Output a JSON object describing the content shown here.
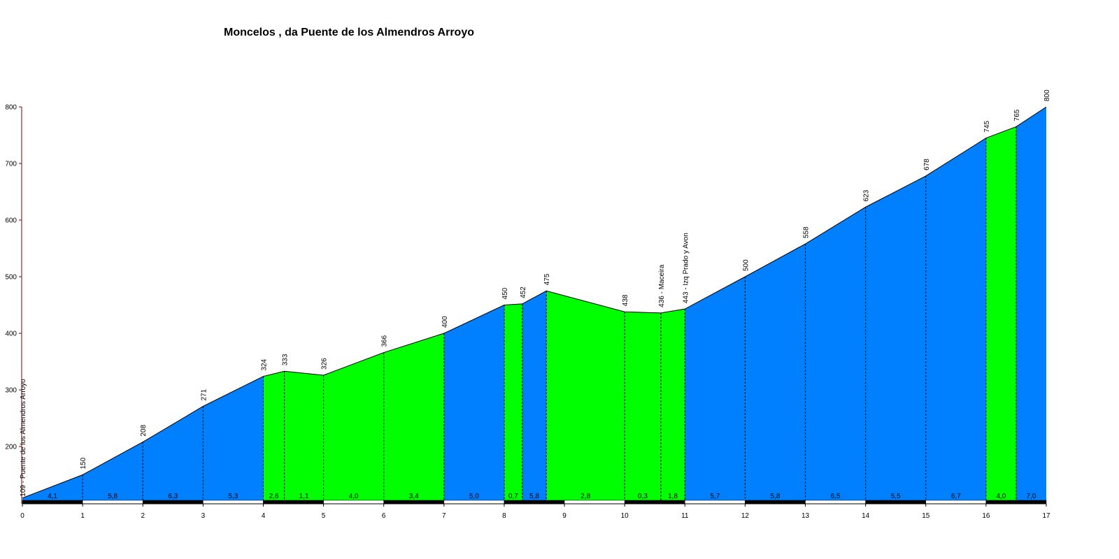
{
  "chart_data": {
    "type": "area",
    "title": "Moncelos , da Puente de los Almendros Arroyo",
    "xlabel": "",
    "ylabel": "",
    "xlim": [
      0,
      17
    ],
    "ylim": [
      100,
      800
    ],
    "x_ticks": [
      "0",
      "1",
      "2",
      "3",
      "4",
      "5",
      "6",
      "7",
      "8",
      "9",
      "10",
      "11",
      "12",
      "13",
      "14",
      "15",
      "16",
      "17"
    ],
    "y_ticks": [
      "200",
      "300",
      "400",
      "500",
      "600",
      "700",
      "800"
    ],
    "grid": false,
    "colors": {
      "climb": "#0080ff",
      "easy": "#00ff00",
      "axis": "#800000",
      "bar_dark": "#000000",
      "bar_light": "#ffffff"
    },
    "points": [
      {
        "x": 0,
        "y": 109,
        "label": "109 - Puente de los Almendros Arroyo"
      },
      {
        "x": 1,
        "y": 150,
        "label": "150"
      },
      {
        "x": 2,
        "y": 208,
        "label": "208"
      },
      {
        "x": 3,
        "y": 271,
        "label": "271"
      },
      {
        "x": 4,
        "y": 324,
        "label": "324"
      },
      {
        "x": 4.35,
        "y": 333,
        "label": "333"
      },
      {
        "x": 5,
        "y": 326,
        "label": "326"
      },
      {
        "x": 6,
        "y": 366,
        "label": "366"
      },
      {
        "x": 7,
        "y": 400,
        "label": "400"
      },
      {
        "x": 8,
        "y": 450,
        "label": "450"
      },
      {
        "x": 8.3,
        "y": 452,
        "label": "452"
      },
      {
        "x": 8.7,
        "y": 475,
        "label": "475"
      },
      {
        "x": 10,
        "y": 438,
        "label": "438"
      },
      {
        "x": 10.6,
        "y": 436,
        "label": "436 - Maceira"
      },
      {
        "x": 11,
        "y": 443,
        "label": "443 - Izq Prado y Avon"
      },
      {
        "x": 12,
        "y": 500,
        "label": "500"
      },
      {
        "x": 13,
        "y": 558,
        "label": "558"
      },
      {
        "x": 14,
        "y": 623,
        "label": "623"
      },
      {
        "x": 15,
        "y": 678,
        "label": "678"
      },
      {
        "x": 16,
        "y": 745,
        "label": "745"
      },
      {
        "x": 16.5,
        "y": 765,
        "label": "765"
      },
      {
        "x": 17,
        "y": 800,
        "label": "800"
      }
    ],
    "segments": [
      {
        "gradient": "4,1",
        "color": "climb"
      },
      {
        "gradient": "5,8",
        "color": "climb"
      },
      {
        "gradient": "6,3",
        "color": "climb"
      },
      {
        "gradient": "5,3",
        "color": "climb"
      },
      {
        "gradient": "2,6",
        "color": "easy"
      },
      {
        "gradient": "1,1",
        "color": "easy"
      },
      {
        "gradient": "4,0",
        "color": "easy"
      },
      {
        "gradient": "3,4",
        "color": "easy"
      },
      {
        "gradient": "5,0",
        "color": "climb"
      },
      {
        "gradient": "0,7",
        "color": "easy"
      },
      {
        "gradient": "5,8",
        "color": "climb"
      },
      {
        "gradient": "2,8",
        "color": "easy"
      },
      {
        "gradient": "0,3",
        "color": "easy"
      },
      {
        "gradient": "1,8",
        "color": "easy"
      },
      {
        "gradient": "5,7",
        "color": "climb"
      },
      {
        "gradient": "5,8",
        "color": "climb"
      },
      {
        "gradient": "6,5",
        "color": "climb"
      },
      {
        "gradient": "5,5",
        "color": "climb"
      },
      {
        "gradient": "6,7",
        "color": "climb"
      },
      {
        "gradient": "4,0",
        "color": "easy"
      },
      {
        "gradient": "7,0",
        "color": "climb"
      }
    ]
  }
}
